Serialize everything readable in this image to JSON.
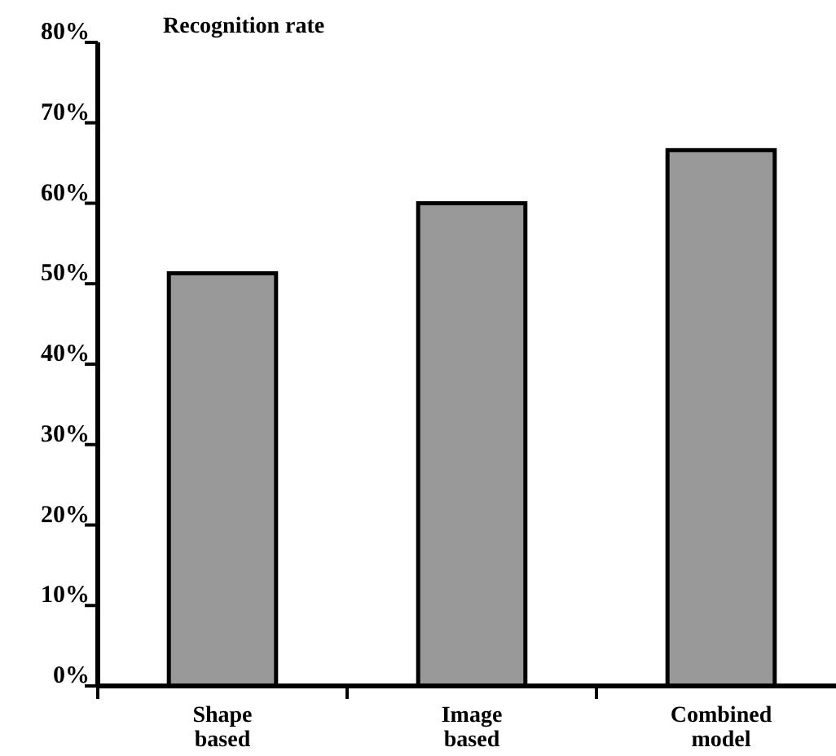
{
  "chart_data": {
    "type": "bar",
    "title": "Recognition rate",
    "categories": [
      "Shape based",
      "Image based",
      "Combined model"
    ],
    "values": [
      51.3,
      60.0,
      66.6
    ],
    "color": "#999999",
    "ylim": [
      0,
      80
    ],
    "yticks": [
      {
        "value": 0,
        "label": "0%"
      },
      {
        "value": 10,
        "label": "10%"
      },
      {
        "value": 20,
        "label": "20%"
      },
      {
        "value": 30,
        "label": "30%"
      },
      {
        "value": 40,
        "label": "40%"
      },
      {
        "value": 50,
        "label": "50%"
      },
      {
        "value": 60,
        "label": "60%"
      },
      {
        "value": 70,
        "label": "70%"
      },
      {
        "value": 80,
        "label": "80%"
      }
    ],
    "grid": false
  }
}
